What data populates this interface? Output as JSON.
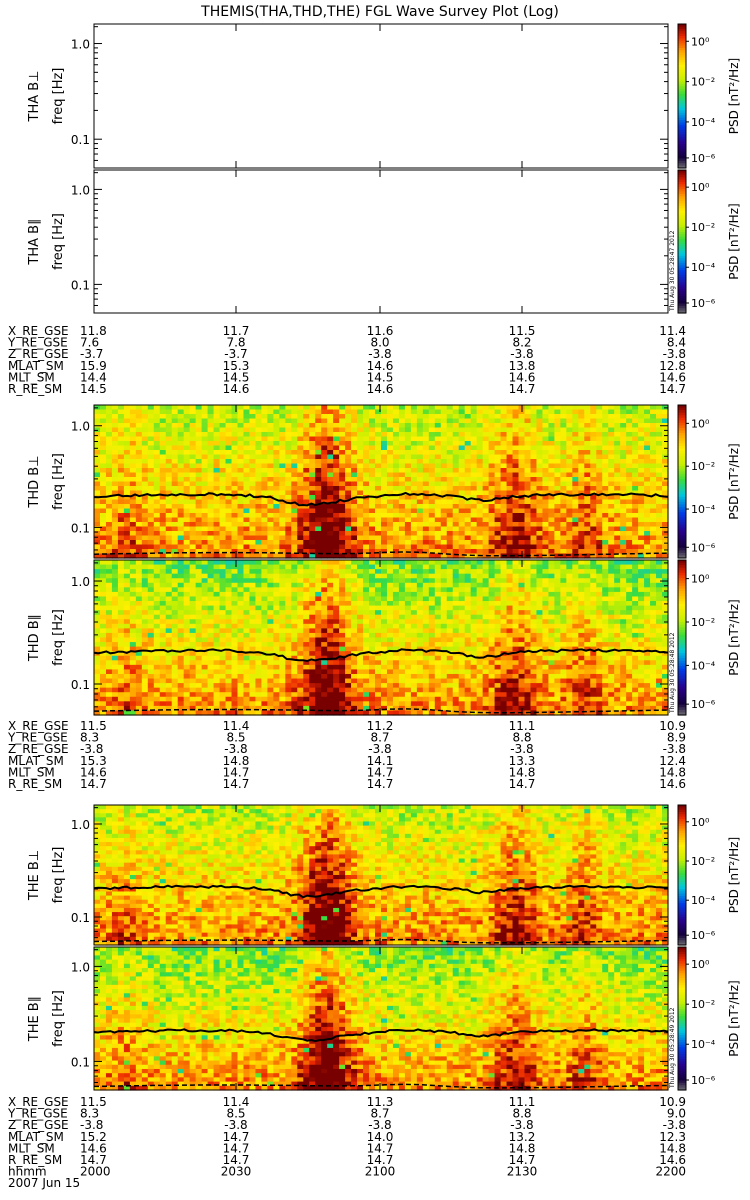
{
  "title": "THEMIS(THA,THD,THE) FGL Wave Survey Plot (Log)",
  "colorbar": {
    "label": "PSD [nT²/Hz]",
    "ticks": [
      "10⁰",
      "10⁻²",
      "10⁻⁴",
      "10⁻⁶"
    ],
    "stamps": [
      "Thu Aug 30 05:28:47 2012",
      "Thu Aug 30 05:28:48 2012",
      "Thu Aug 30 05:28:49 2012"
    ]
  },
  "chart_data": {
    "type": "heatmap",
    "title": "THEMIS(THA,THD,THE) FGL Wave Survey Plot (Log)",
    "date": "2007 Jun 15",
    "x_tick_label": "hhmm",
    "x_ticks": [
      "2000",
      "2030",
      "2100",
      "2130",
      "2200"
    ],
    "ylabel": "freq [Hz]",
    "yscale": "log",
    "ylim": [
      0.05,
      1.6
    ],
    "y_ticks": [
      "1.0",
      "0.1"
    ],
    "probes": [
      {
        "id": "THA",
        "panels": [
          {
            "label": "THA B⊥",
            "has_data": false,
            "y_ticks": [
              "1.0",
              "0.1"
            ]
          },
          {
            "label": "THA B∥",
            "has_data": false,
            "y_ticks": [
              "1.0",
              "0.1"
            ]
          }
        ],
        "ephemeris": [
          {
            "name": "X_RE_GSE",
            "values": [
              "11.8",
              "11.7",
              "11.6",
              "11.5",
              "11.4"
            ]
          },
          {
            "name": "Y_RE_GSE",
            "values": [
              "7.6",
              "7.8",
              "8.0",
              "8.2",
              "8.4"
            ]
          },
          {
            "name": "Z_RE_GSE",
            "values": [
              "-3.7",
              "-3.7",
              "-3.8",
              "-3.8",
              "-3.8"
            ]
          },
          {
            "name": "MLAT_SM",
            "values": [
              "15.9",
              "15.3",
              "14.6",
              "13.8",
              "12.8"
            ]
          },
          {
            "name": "MLT_SM",
            "values": [
              "14.4",
              "14.5",
              "14.5",
              "14.6",
              "14.6"
            ]
          },
          {
            "name": "R_RE_SM",
            "values": [
              "14.5",
              "14.6",
              "14.6",
              "14.7",
              "14.7"
            ]
          }
        ]
      },
      {
        "id": "THD",
        "panels": [
          {
            "label": "THD B⊥",
            "has_data": true,
            "y_ticks": [
              "1.0",
              "0.1"
            ]
          },
          {
            "label": "THD B∥",
            "has_data": true,
            "y_ticks": [
              "1.0",
              "0.1"
            ]
          }
        ],
        "ephemeris": [
          {
            "name": "X_RE_GSE",
            "values": [
              "11.5",
              "11.4",
              "11.2",
              "11.1",
              "10.9"
            ]
          },
          {
            "name": "Y_RE_GSE",
            "values": [
              "8.3",
              "8.5",
              "8.7",
              "8.8",
              "8.9"
            ]
          },
          {
            "name": "Z_RE_GSE",
            "values": [
              "-3.8",
              "-3.8",
              "-3.8",
              "-3.8",
              "-3.8"
            ]
          },
          {
            "name": "MLAT_SM",
            "values": [
              "15.3",
              "14.8",
              "14.1",
              "13.3",
              "12.4"
            ]
          },
          {
            "name": "MLT_SM",
            "values": [
              "14.6",
              "14.7",
              "14.7",
              "14.8",
              "14.8"
            ]
          },
          {
            "name": "R_RE_SM",
            "values": [
              "14.7",
              "14.7",
              "14.7",
              "14.7",
              "14.6"
            ]
          }
        ]
      },
      {
        "id": "THE",
        "panels": [
          {
            "label": "THE B⊥",
            "has_data": true,
            "y_ticks": [
              "1.0",
              "0.1"
            ]
          },
          {
            "label": "THE B∥",
            "has_data": true,
            "y_ticks": [
              "1.0",
              "0.1"
            ]
          }
        ],
        "ephemeris": [
          {
            "name": "X_RE_GSE",
            "values": [
              "11.5",
              "11.4",
              "11.3",
              "11.1",
              "10.9"
            ]
          },
          {
            "name": "Y_RE_GSE",
            "values": [
              "8.3",
              "8.5",
              "8.7",
              "8.8",
              "9.0"
            ]
          },
          {
            "name": "Z_RE_GSE",
            "values": [
              "-3.8",
              "-3.8",
              "-3.8",
              "-3.8",
              "-3.8"
            ]
          },
          {
            "name": "MLAT_SM",
            "values": [
              "15.2",
              "14.7",
              "14.0",
              "13.2",
              "12.3"
            ]
          },
          {
            "name": "MLT_SM",
            "values": [
              "14.6",
              "14.7",
              "14.7",
              "14.8",
              "14.8"
            ]
          },
          {
            "name": "R_RE_SM",
            "values": [
              "14.7",
              "14.7",
              "14.7",
              "14.7",
              "14.6"
            ]
          }
        ]
      }
    ]
  }
}
